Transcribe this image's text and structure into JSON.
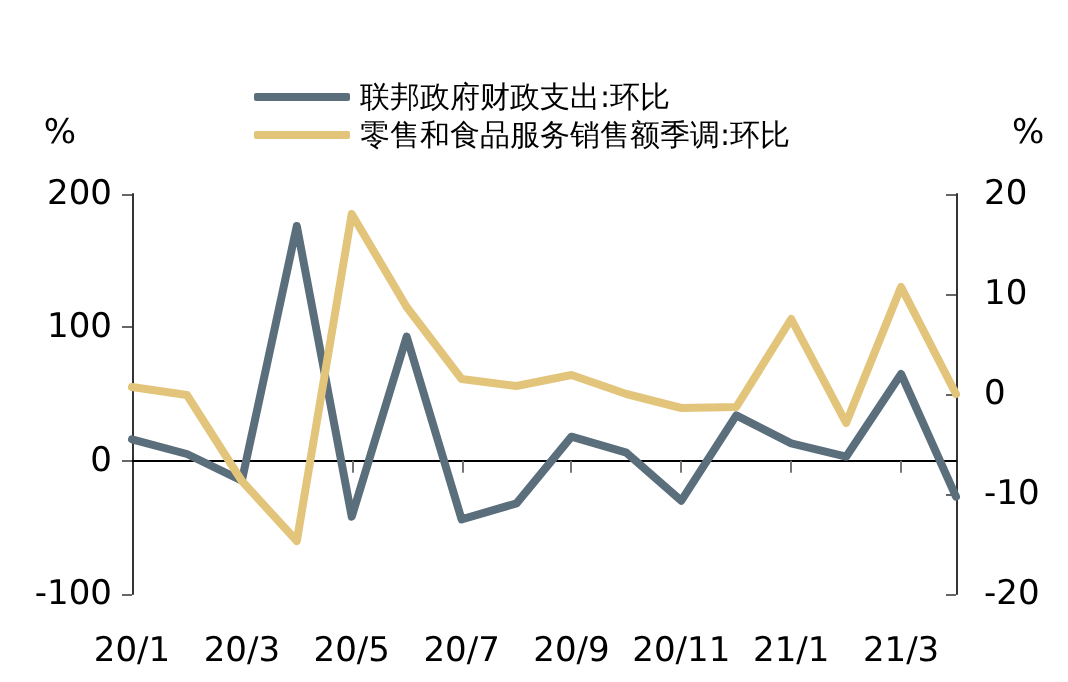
{
  "chart_data": {
    "type": "line",
    "categories": [
      "20/1",
      null,
      "20/3",
      null,
      "20/5",
      null,
      "20/7",
      null,
      "20/9",
      null,
      "20/11",
      null,
      "21/1",
      null,
      "21/3",
      null
    ],
    "series": [
      {
        "name": "联邦政府财政支出:环比",
        "color": "#5a6e7c",
        "values": [
          16,
          5,
          -15,
          176,
          -42,
          93,
          -44,
          -32,
          18,
          6,
          -30,
          34,
          13,
          3,
          65,
          -27
        ]
      },
      {
        "name": "零售和食品服务销售额季调:环比",
        "color": "#e3c47b",
        "axis": "y2",
        "values": [
          0.7,
          -0.1,
          -8.7,
          -14.7,
          18,
          8.7,
          1.5,
          0.8,
          1.9,
          0,
          -1.4,
          -1.3,
          7.5,
          -2.9,
          10.7,
          0
        ]
      }
    ],
    "ylabel": "%",
    "y2label": "%",
    "ylim": [
      -100,
      200
    ],
    "yticks": [
      -100,
      0,
      100,
      200
    ],
    "y2lim": [
      -20,
      20
    ],
    "y2ticks": [
      -20,
      -10,
      0,
      10,
      20
    ],
    "legend": "top",
    "marker": "none",
    "line_style": "solid"
  }
}
